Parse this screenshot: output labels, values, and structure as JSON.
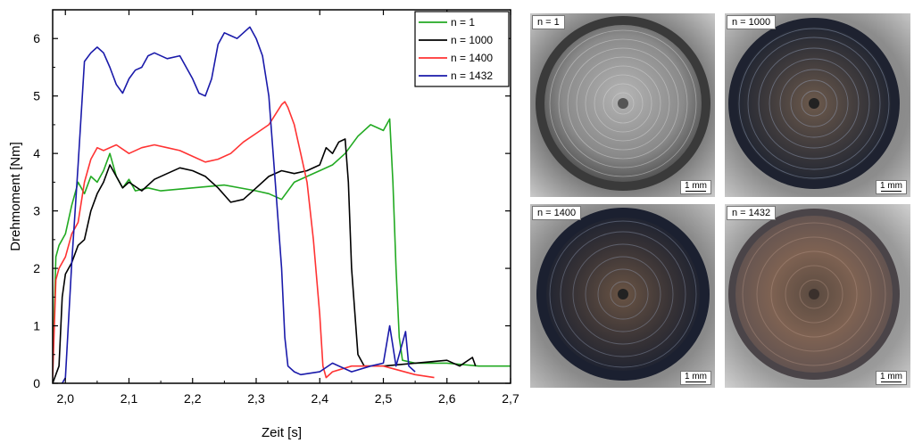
{
  "chart_data": {
    "type": "line",
    "xlabel": "Zeit [s]",
    "ylabel": "Drehmoment [Nm]",
    "xlim": [
      1.98,
      2.7
    ],
    "ylim": [
      0,
      6.5
    ],
    "xticks": [
      "2,0",
      "2,1",
      "2,2",
      "2,3",
      "2,4",
      "2,5",
      "2,6",
      "2,7"
    ],
    "yticks": [
      "0",
      "1",
      "2",
      "3",
      "4",
      "5",
      "6"
    ],
    "legend_position": "top-right",
    "series": [
      {
        "name": "n = 1",
        "color": "#22aa22",
        "points": [
          [
            1.98,
            0.3
          ],
          [
            1.985,
            2.2
          ],
          [
            1.99,
            2.4
          ],
          [
            2.0,
            2.6
          ],
          [
            2.01,
            3.1
          ],
          [
            2.02,
            3.5
          ],
          [
            2.03,
            3.3
          ],
          [
            2.04,
            3.6
          ],
          [
            2.05,
            3.5
          ],
          [
            2.06,
            3.7
          ],
          [
            2.07,
            4.0
          ],
          [
            2.08,
            3.6
          ],
          [
            2.09,
            3.4
          ],
          [
            2.1,
            3.55
          ],
          [
            2.11,
            3.35
          ],
          [
            2.13,
            3.4
          ],
          [
            2.15,
            3.35
          ],
          [
            2.2,
            3.4
          ],
          [
            2.25,
            3.45
          ],
          [
            2.3,
            3.35
          ],
          [
            2.32,
            3.3
          ],
          [
            2.34,
            3.2
          ],
          [
            2.36,
            3.5
          ],
          [
            2.38,
            3.6
          ],
          [
            2.4,
            3.7
          ],
          [
            2.42,
            3.8
          ],
          [
            2.44,
            4.0
          ],
          [
            2.46,
            4.3
          ],
          [
            2.48,
            4.5
          ],
          [
            2.49,
            4.45
          ],
          [
            2.5,
            4.4
          ],
          [
            2.51,
            4.6
          ],
          [
            2.515,
            3.5
          ],
          [
            2.52,
            2.0
          ],
          [
            2.525,
            0.8
          ],
          [
            2.53,
            0.4
          ],
          [
            2.55,
            0.35
          ],
          [
            2.6,
            0.35
          ],
          [
            2.65,
            0.3
          ],
          [
            2.7,
            0.3
          ]
        ]
      },
      {
        "name": "n = 1000",
        "color": "#000000",
        "points": [
          [
            1.98,
            0.0
          ],
          [
            1.99,
            0.3
          ],
          [
            1.995,
            1.5
          ],
          [
            2.0,
            1.9
          ],
          [
            2.01,
            2.1
          ],
          [
            2.02,
            2.4
          ],
          [
            2.03,
            2.5
          ],
          [
            2.04,
            3.0
          ],
          [
            2.05,
            3.3
          ],
          [
            2.06,
            3.5
          ],
          [
            2.07,
            3.8
          ],
          [
            2.08,
            3.6
          ],
          [
            2.09,
            3.4
          ],
          [
            2.1,
            3.5
          ],
          [
            2.12,
            3.35
          ],
          [
            2.14,
            3.55
          ],
          [
            2.16,
            3.65
          ],
          [
            2.18,
            3.75
          ],
          [
            2.2,
            3.7
          ],
          [
            2.22,
            3.6
          ],
          [
            2.24,
            3.4
          ],
          [
            2.26,
            3.15
          ],
          [
            2.28,
            3.2
          ],
          [
            2.3,
            3.4
          ],
          [
            2.32,
            3.6
          ],
          [
            2.34,
            3.7
          ],
          [
            2.36,
            3.65
          ],
          [
            2.38,
            3.7
          ],
          [
            2.4,
            3.8
          ],
          [
            2.41,
            4.1
          ],
          [
            2.42,
            4.0
          ],
          [
            2.43,
            4.2
          ],
          [
            2.44,
            4.25
          ],
          [
            2.445,
            3.5
          ],
          [
            2.45,
            2.0
          ],
          [
            2.46,
            0.5
          ],
          [
            2.47,
            0.3
          ],
          [
            2.5,
            0.3
          ],
          [
            2.55,
            0.35
          ],
          [
            2.6,
            0.4
          ],
          [
            2.62,
            0.3
          ],
          [
            2.64,
            0.45
          ],
          [
            2.645,
            0.3
          ]
        ]
      },
      {
        "name": "n = 1400",
        "color": "#ff3333",
        "points": [
          [
            1.98,
            0.1
          ],
          [
            1.985,
            1.8
          ],
          [
            1.99,
            2.0
          ],
          [
            2.0,
            2.2
          ],
          [
            2.01,
            2.6
          ],
          [
            2.02,
            2.8
          ],
          [
            2.03,
            3.5
          ],
          [
            2.04,
            3.9
          ],
          [
            2.05,
            4.1
          ],
          [
            2.06,
            4.05
          ],
          [
            2.08,
            4.15
          ],
          [
            2.1,
            4.0
          ],
          [
            2.12,
            4.1
          ],
          [
            2.14,
            4.15
          ],
          [
            2.16,
            4.1
          ],
          [
            2.18,
            4.05
          ],
          [
            2.2,
            3.95
          ],
          [
            2.22,
            3.85
          ],
          [
            2.24,
            3.9
          ],
          [
            2.26,
            4.0
          ],
          [
            2.28,
            4.2
          ],
          [
            2.3,
            4.35
          ],
          [
            2.32,
            4.5
          ],
          [
            2.34,
            4.85
          ],
          [
            2.345,
            4.9
          ],
          [
            2.35,
            4.8
          ],
          [
            2.36,
            4.5
          ],
          [
            2.37,
            4.0
          ],
          [
            2.38,
            3.5
          ],
          [
            2.39,
            2.5
          ],
          [
            2.4,
            1.2
          ],
          [
            2.405,
            0.3
          ],
          [
            2.41,
            0.1
          ],
          [
            2.42,
            0.2
          ],
          [
            2.45,
            0.3
          ],
          [
            2.5,
            0.3
          ],
          [
            2.55,
            0.15
          ],
          [
            2.58,
            0.1
          ]
        ]
      },
      {
        "name": "n = 1432",
        "color": "#1a1aaa",
        "points": [
          [
            1.995,
            0.0
          ],
          [
            2.0,
            0.1
          ],
          [
            2.01,
            2.1
          ],
          [
            2.02,
            3.8
          ],
          [
            2.03,
            5.6
          ],
          [
            2.04,
            5.75
          ],
          [
            2.05,
            5.85
          ],
          [
            2.06,
            5.75
          ],
          [
            2.07,
            5.5
          ],
          [
            2.08,
            5.2
          ],
          [
            2.09,
            5.05
          ],
          [
            2.1,
            5.3
          ],
          [
            2.11,
            5.45
          ],
          [
            2.12,
            5.5
          ],
          [
            2.13,
            5.7
          ],
          [
            2.14,
            5.75
          ],
          [
            2.16,
            5.65
          ],
          [
            2.18,
            5.7
          ],
          [
            2.2,
            5.3
          ],
          [
            2.21,
            5.05
          ],
          [
            2.22,
            5.0
          ],
          [
            2.23,
            5.3
          ],
          [
            2.24,
            5.9
          ],
          [
            2.25,
            6.1
          ],
          [
            2.26,
            6.05
          ],
          [
            2.27,
            6.0
          ],
          [
            2.28,
            6.1
          ],
          [
            2.29,
            6.2
          ],
          [
            2.3,
            6.0
          ],
          [
            2.31,
            5.7
          ],
          [
            2.32,
            5.0
          ],
          [
            2.33,
            3.5
          ],
          [
            2.34,
            2.0
          ],
          [
            2.345,
            0.8
          ],
          [
            2.35,
            0.3
          ],
          [
            2.36,
            0.2
          ],
          [
            2.37,
            0.15
          ],
          [
            2.4,
            0.2
          ],
          [
            2.42,
            0.35
          ],
          [
            2.45,
            0.2
          ],
          [
            2.48,
            0.3
          ],
          [
            2.5,
            0.35
          ],
          [
            2.51,
            1.0
          ],
          [
            2.52,
            0.3
          ],
          [
            2.535,
            0.9
          ],
          [
            2.54,
            0.3
          ],
          [
            2.55,
            0.2
          ]
        ]
      }
    ]
  },
  "photos": [
    {
      "label": "n = 1",
      "scale": "1 mm",
      "tone": "silver"
    },
    {
      "label": "n = 1000",
      "scale": "1 mm",
      "tone": "dark"
    },
    {
      "label": "n = 1400",
      "scale": "1 mm",
      "tone": "darkblue"
    },
    {
      "label": "n = 1432",
      "scale": "1 mm",
      "tone": "brown"
    }
  ]
}
